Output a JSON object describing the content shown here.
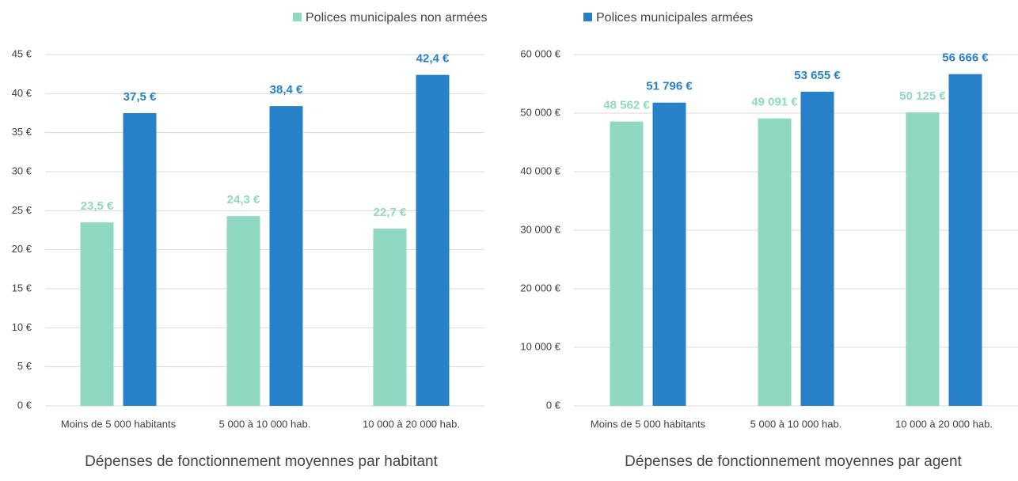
{
  "chart_data": [
    {
      "type": "bar",
      "title": "Dépenses de fonctionnement moyennes par habitant",
      "categories": [
        "Moins de 5 000 habitants",
        "5 000 à 10 000 hab.",
        "10 000 à 20 000 hab."
      ],
      "series": [
        {
          "name": "Polices municipales non armées",
          "color": "#8fd8c2",
          "values": [
            23.5,
            24.3,
            22.7
          ],
          "value_labels": [
            "23,5 €",
            "24,3 €",
            "22,7 €"
          ]
        },
        {
          "name": "Polices municipales armées",
          "color": "#2781c8",
          "values": [
            37.5,
            38.4,
            42.4
          ],
          "value_labels": [
            "37,5 €",
            "38,4 €",
            "42,4 €"
          ]
        }
      ],
      "ylim": [
        0,
        45
      ],
      "yticks": [
        {
          "value": 0,
          "label": "0 €"
        },
        {
          "value": 5,
          "label": "5 €"
        },
        {
          "value": 10,
          "label": "10 €"
        },
        {
          "value": 15,
          "label": "15 €"
        },
        {
          "value": 20,
          "label": "20 €"
        },
        {
          "value": 25,
          "label": "25 €"
        },
        {
          "value": 30,
          "label": "30 €"
        },
        {
          "value": 35,
          "label": "35 €"
        },
        {
          "value": 40,
          "label": "40 €"
        },
        {
          "value": 45,
          "label": "45 €"
        }
      ],
      "grid": true
    },
    {
      "type": "bar",
      "title": "Dépenses de fonctionnement moyennes par agent",
      "categories": [
        "Moins de 5 000 habitants",
        "5 000 à 10 000 hab.",
        "10 000 à 20 000 hab."
      ],
      "series": [
        {
          "name": "Polices municipales non armées",
          "color": "#8fd8c2",
          "values": [
            48562,
            49091,
            50125
          ],
          "value_labels": [
            "48 562 €",
            "49 091 €",
            "50 125 €"
          ]
        },
        {
          "name": "Polices municipales armées",
          "color": "#2781c8",
          "values": [
            51796,
            53655,
            56666
          ],
          "value_labels": [
            "51 796 €",
            "53 655 €",
            "56 666 €"
          ]
        }
      ],
      "ylim": [
        0,
        60000
      ],
      "yticks": [
        {
          "value": 0,
          "label": "0 €"
        },
        {
          "value": 10000,
          "label": "10 000 €"
        },
        {
          "value": 20000,
          "label": "20 000 €"
        },
        {
          "value": 30000,
          "label": "30 000 €"
        },
        {
          "value": 40000,
          "label": "40 000 €"
        },
        {
          "value": 50000,
          "label": "50 000 €"
        },
        {
          "value": 60000,
          "label": "60 000 €"
        }
      ],
      "grid": true
    }
  ]
}
